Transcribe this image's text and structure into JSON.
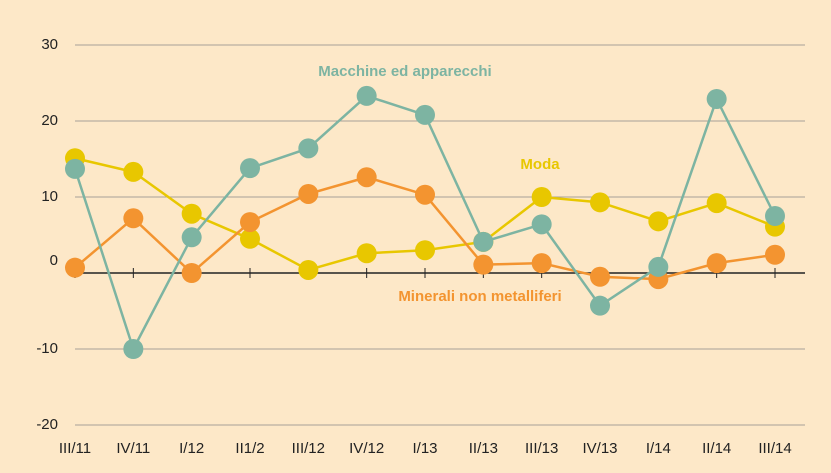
{
  "chart_data": {
    "type": "line",
    "categories": [
      "III/11",
      "IV/11",
      "I/12",
      "II1/2",
      "III/12",
      "IV/12",
      "I/13",
      "II/13",
      "III/13",
      "IV/13",
      "I/14",
      "II/14",
      "III/14"
    ],
    "series": [
      {
        "name": "Moda",
        "color": "#e8c700",
        "values": [
          15.1,
          13.3,
          7.8,
          4.5,
          0.4,
          2.6,
          3.0,
          4.1,
          10.0,
          9.3,
          6.8,
          9.2,
          6.1
        ]
      },
      {
        "name": "Minerali non metalliferi",
        "color": "#f39430",
        "values": [
          0.7,
          7.2,
          0,
          6.7,
          10.4,
          12.6,
          10.3,
          1.1,
          1.3,
          -0.5,
          -0.8,
          1.3,
          2.4
        ]
      },
      {
        "name": "Macchine ed apparecchi",
        "color": "#7db4a2",
        "values": [
          13.7,
          -10,
          4.7,
          13.8,
          16.4,
          23.3,
          20.8,
          4.1,
          6.4,
          -4.3,
          0.8,
          22.9,
          7.5
        ]
      }
    ],
    "ylim": [
      -20,
      30
    ],
    "yticks": [
      -20,
      -10,
      0,
      10,
      20,
      30
    ],
    "grid": true
  }
}
